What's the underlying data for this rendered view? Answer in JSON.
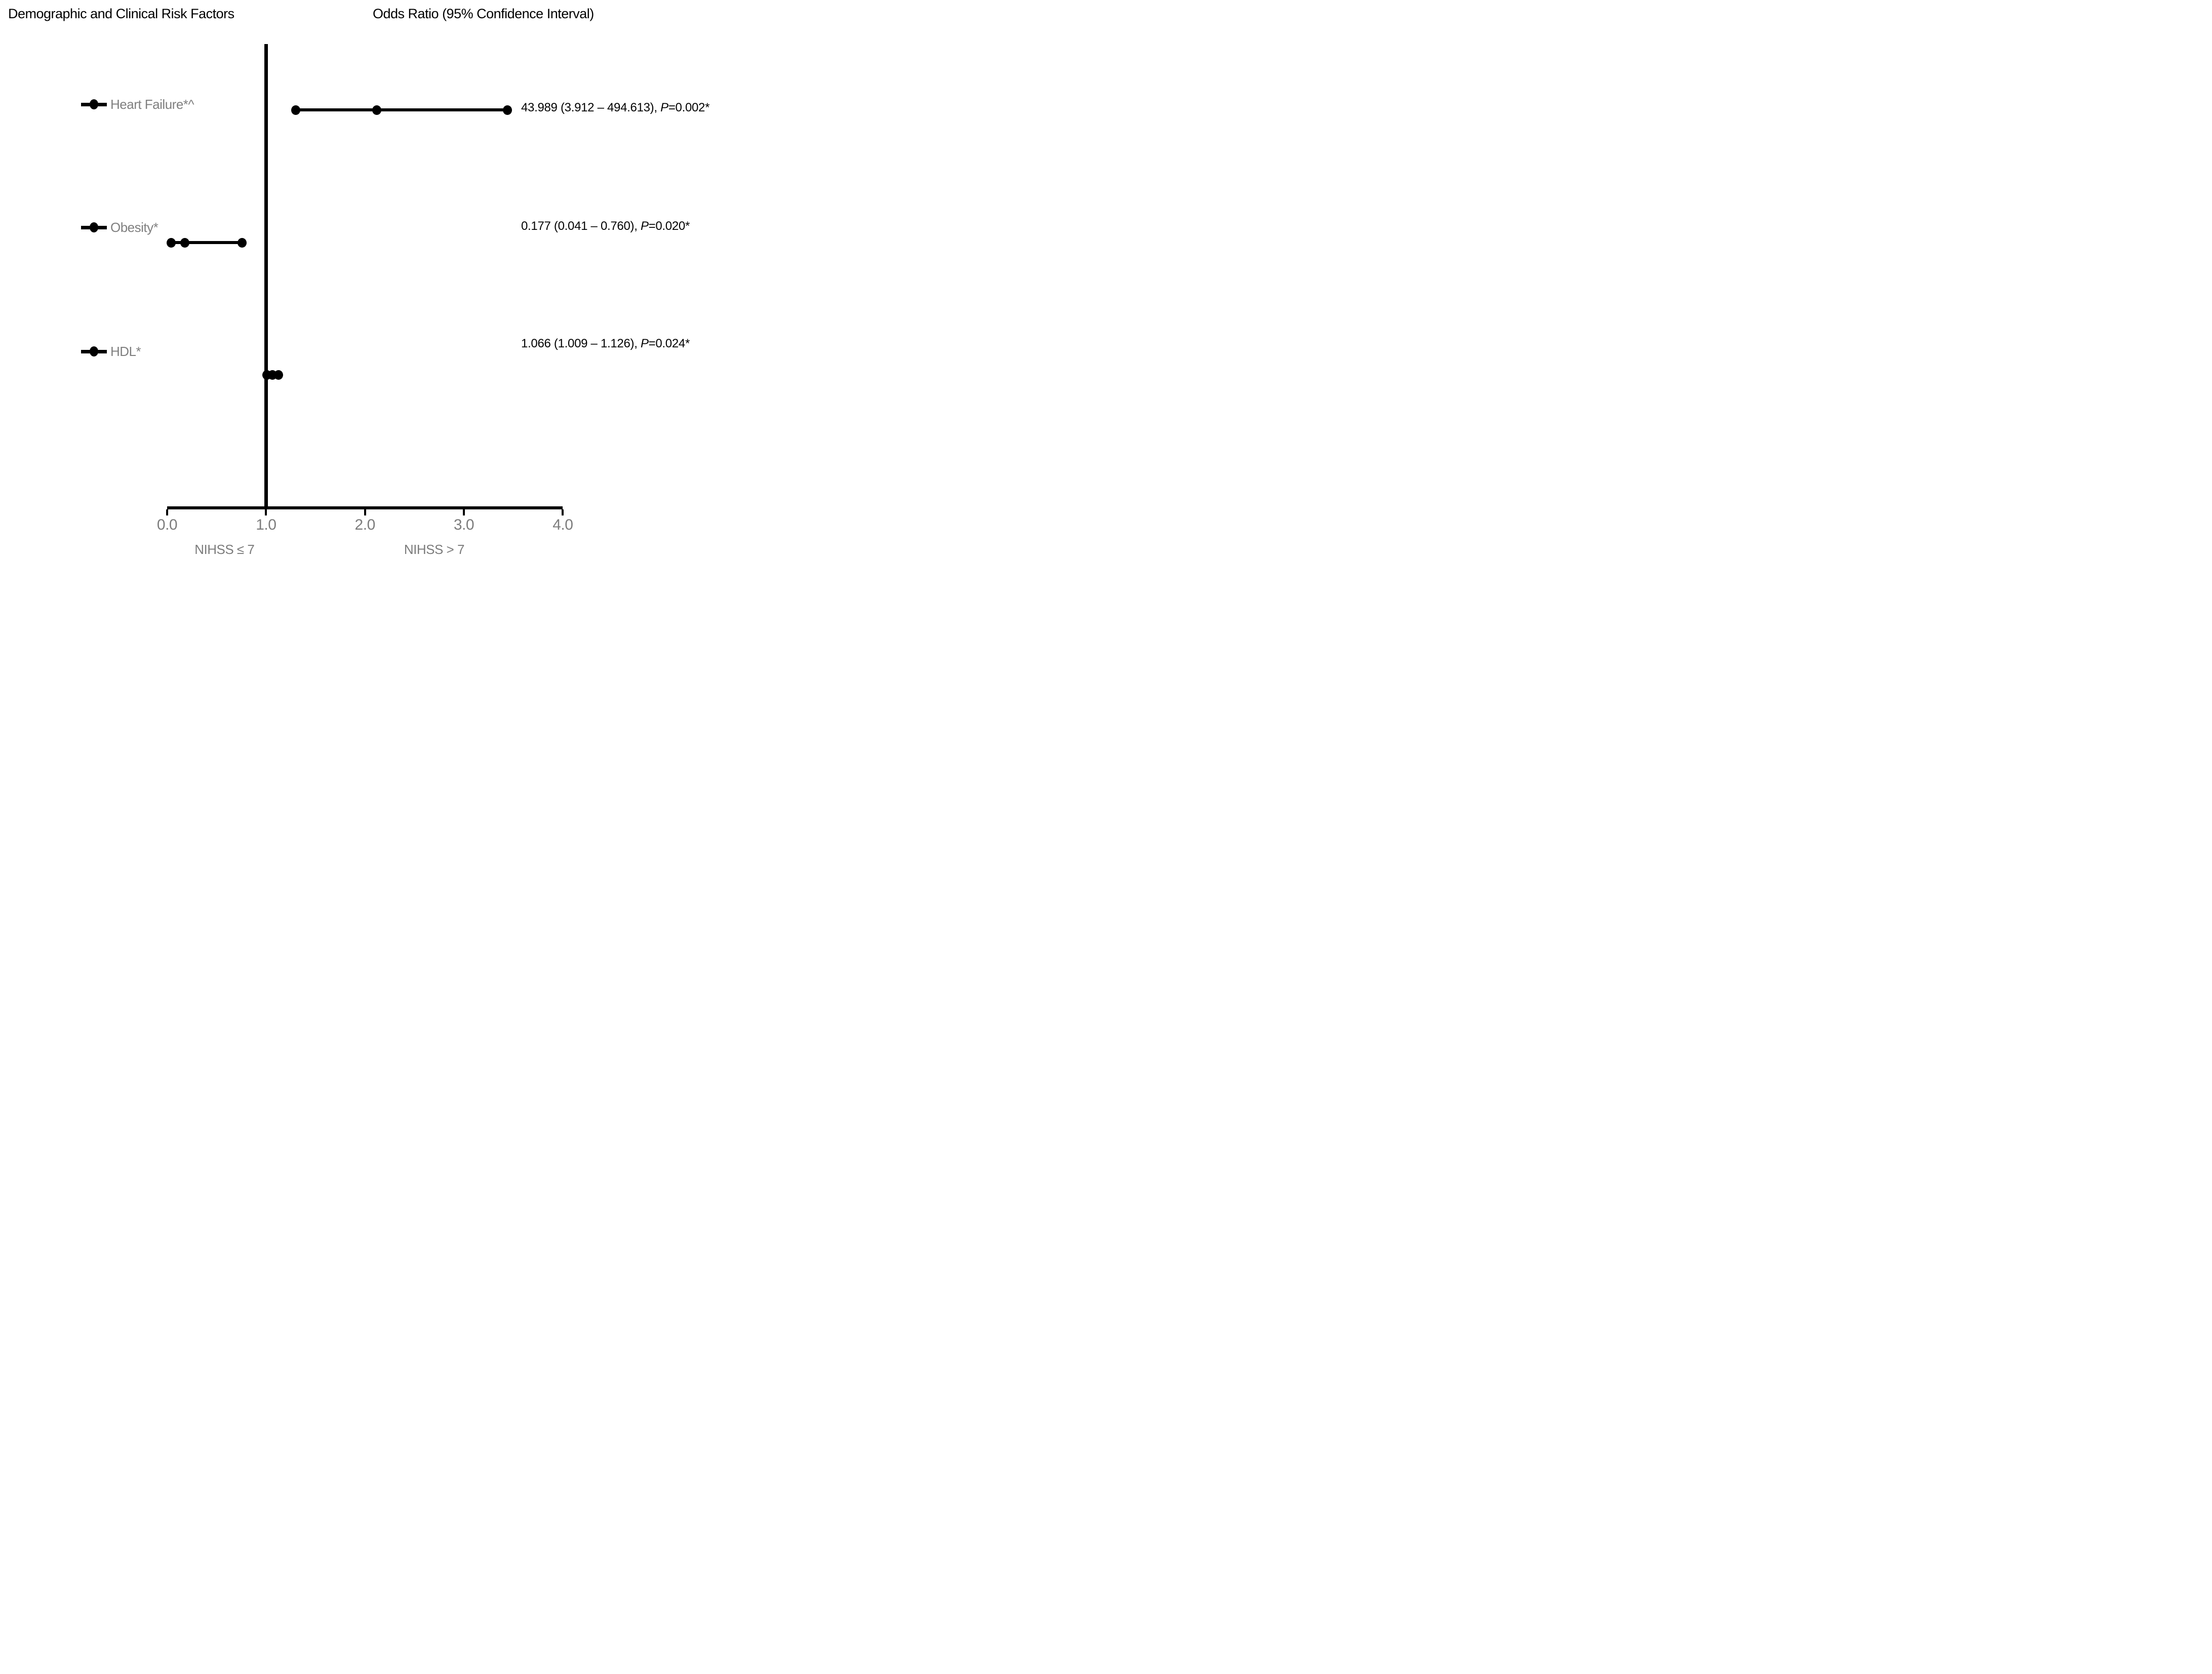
{
  "header": {
    "left_title": "Demographic and Clinical Risk Factors",
    "right_title": "Odds Ratio (95% Confidence Interval)"
  },
  "chart_data": {
    "type": "forest",
    "title": "Demographic and Clinical Risk Factors — Odds Ratio (95% Confidence Interval)",
    "x_axis": {
      "range": [
        0.0,
        4.0
      ],
      "tick_values": [
        0,
        1,
        2,
        3,
        4
      ],
      "tick_labels": [
        "0.0",
        "1.0",
        "2.0",
        "3.0",
        "4.0"
      ],
      "reference_line_x": 1.0,
      "group_labels": [
        {
          "text": "NIHSS ≤ 7",
          "x": 0.58
        },
        {
          "text": "NIHSS > 7",
          "x": 2.7
        }
      ],
      "grid": false
    },
    "rows": [
      {
        "label": "Heart Failure*^",
        "odds_ratio": 43.989,
        "ci_low": 3.912,
        "ci_high": 494.613,
        "p_value": "0.002",
        "value_or_ci": "43.989 (3.912 – 494.613), ",
        "value_p_prefix": "P",
        "value_p_suffix": "=0.002*",
        "plot_x": {
          "low": 1.3,
          "mid": 2.12,
          "high": 3.44
        }
      },
      {
        "label": "Obesity*",
        "odds_ratio": 0.177,
        "ci_low": 0.041,
        "ci_high": 0.76,
        "p_value": "0.020",
        "value_or_ci": "0.177 (0.041 – 0.760), ",
        "value_p_prefix": "P",
        "value_p_suffix": "=0.020*",
        "plot_x": {
          "low": 0.041,
          "mid": 0.177,
          "high": 0.76
        }
      },
      {
        "label": "HDL*",
        "odds_ratio": 1.066,
        "ci_low": 1.009,
        "ci_high": 1.126,
        "p_value": "0.024",
        "value_or_ci": "1.066 (1.009 – 1.126), ",
        "value_p_prefix": "P",
        "value_p_suffix": "=0.024*",
        "plot_x": {
          "low": 1.009,
          "mid": 1.066,
          "high": 1.126
        }
      }
    ],
    "colors": {
      "marks": "#000000",
      "label_text": "#7f7f7f",
      "axis_text": "#7c7c7c",
      "value_text": "#000000"
    }
  }
}
